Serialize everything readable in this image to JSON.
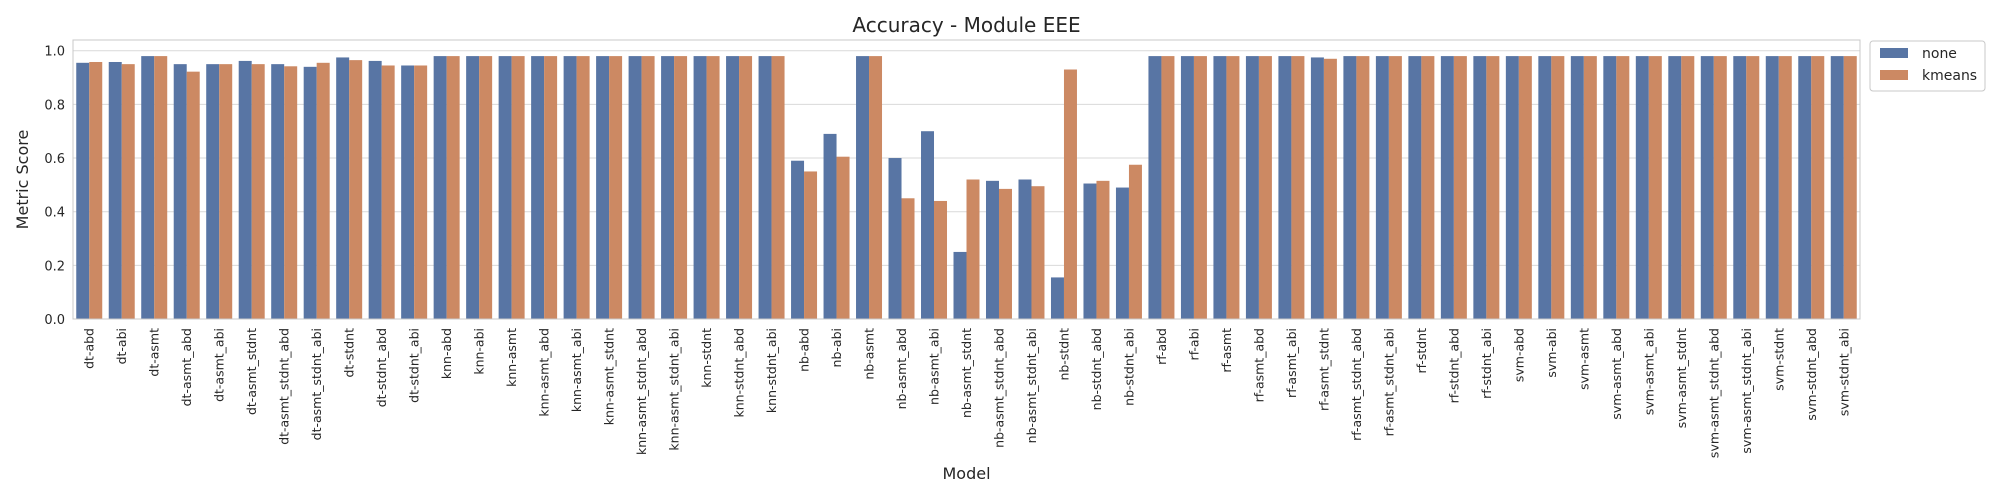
{
  "colors": {
    "none": "#5875a4",
    "kmeans": "#cc8963",
    "grid": "#d9d9d9",
    "axis": "#c8c8c8"
  },
  "chart_data": {
    "type": "bar",
    "title": "Accuracy - Module EEE",
    "xlabel": "Model",
    "ylabel": "Metric Score",
    "ylim": [
      0,
      1.04
    ],
    "yticks": [
      "0.0",
      "0.2",
      "0.4",
      "0.6",
      "0.8",
      "1.0"
    ],
    "grid": true,
    "legend_position": "outside-top-right",
    "categories": [
      "dt-abd",
      "dt-abi",
      "dt-asmt",
      "dt-asmt_abd",
      "dt-asmt_abi",
      "dt-asmt_stdnt",
      "dt-asmt_stdnt_abd",
      "dt-asmt_stdnt_abi",
      "dt-stdnt",
      "dt-stdnt_abd",
      "dt-stdnt_abi",
      "knn-abd",
      "knn-abi",
      "knn-asmt",
      "knn-asmt_abd",
      "knn-asmt_abi",
      "knn-asmt_stdnt",
      "knn-asmt_stdnt_abd",
      "knn-asmt_stdnt_abi",
      "knn-stdnt",
      "knn-stdnt_abd",
      "knn-stdnt_abi",
      "nb-abd",
      "nb-abi",
      "nb-asmt",
      "nb-asmt_abd",
      "nb-asmt_abi",
      "nb-asmt_stdnt",
      "nb-asmt_stdnt_abd",
      "nb-asmt_stdnt_abi",
      "nb-stdnt",
      "nb-stdnt_abd",
      "nb-stdnt_abi",
      "rf-abd",
      "rf-abi",
      "rf-asmt",
      "rf-asmt_abd",
      "rf-asmt_abi",
      "rf-asmt_stdnt",
      "rf-asmt_stdnt_abd",
      "rf-asmt_stdnt_abi",
      "rf-stdnt",
      "rf-stdnt_abd",
      "rf-stdnt_abi",
      "svm-abd",
      "svm-abi",
      "svm-asmt",
      "svm-asmt_abd",
      "svm-asmt_abi",
      "svm-asmt_stdnt",
      "svm-asmt_stdnt_abd",
      "svm-asmt_stdnt_abi",
      "svm-stdnt",
      "svm-stdnt_abd",
      "svm-stdnt_abi"
    ],
    "series": [
      {
        "name": "none",
        "values": [
          0.955,
          0.958,
          0.98,
          0.95,
          0.95,
          0.962,
          0.95,
          0.94,
          0.975,
          0.962,
          0.945,
          0.98,
          0.98,
          0.98,
          0.98,
          0.98,
          0.98,
          0.98,
          0.98,
          0.98,
          0.98,
          0.98,
          0.59,
          0.69,
          0.98,
          0.6,
          0.7,
          0.25,
          0.515,
          0.52,
          0.155,
          0.505,
          0.49,
          0.98,
          0.98,
          0.98,
          0.98,
          0.98,
          0.975,
          0.98,
          0.98,
          0.98,
          0.98,
          0.98,
          0.98,
          0.98,
          0.98,
          0.98,
          0.98,
          0.98,
          0.98,
          0.98,
          0.98,
          0.98,
          0.98
        ]
      },
      {
        "name": "kmeans",
        "values": [
          0.958,
          0.95,
          0.98,
          0.922,
          0.95,
          0.95,
          0.942,
          0.955,
          0.965,
          0.945,
          0.945,
          0.98,
          0.98,
          0.98,
          0.98,
          0.98,
          0.98,
          0.98,
          0.98,
          0.98,
          0.98,
          0.98,
          0.55,
          0.605,
          0.98,
          0.45,
          0.44,
          0.52,
          0.485,
          0.495,
          0.93,
          0.515,
          0.575,
          0.98,
          0.98,
          0.98,
          0.98,
          0.98,
          0.97,
          0.98,
          0.98,
          0.98,
          0.98,
          0.98,
          0.98,
          0.98,
          0.98,
          0.98,
          0.98,
          0.98,
          0.98,
          0.98,
          0.98,
          0.98,
          0.98
        ]
      }
    ]
  }
}
